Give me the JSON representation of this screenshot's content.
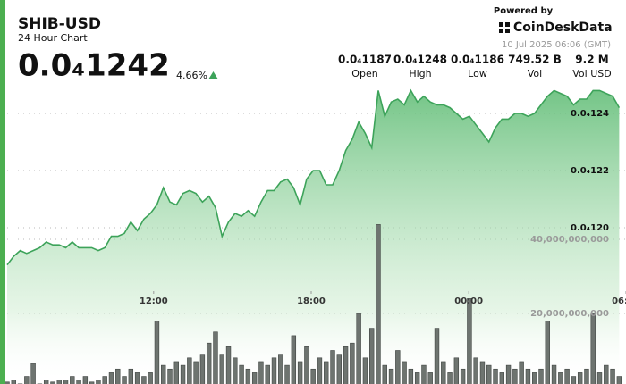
{
  "header": {
    "title": "SHIB-USD",
    "subtitle": "24 Hour Chart",
    "price": "0.0₄1242",
    "change": "4.66%",
    "powered_by": "Powered by",
    "brand": "CoinDeskData",
    "timestamp": "10 Jul 2025 06:06 (GMT)",
    "stats": [
      {
        "value": "0.0₄1187",
        "label": "Open"
      },
      {
        "value": "0.0₄1248",
        "label": "High"
      },
      {
        "value": "0.0₄1186",
        "label": "Low"
      },
      {
        "value": "749.52 B",
        "label": "Vol"
      },
      {
        "value": "9.2 M",
        "label": "Vol USD"
      }
    ]
  },
  "chart_data": {
    "type": "line",
    "xlim": [
      0,
      95.05
    ],
    "xticks": [
      {
        "value": 22.5,
        "label": "12:00"
      },
      {
        "value": 46.7,
        "label": "18:00"
      },
      {
        "value": 70.9,
        "label": "00:00"
      },
      {
        "value": 95.05,
        "label": "06:00"
      }
    ],
    "ylim": [
      1.1453e-05,
      1.2547e-05
    ],
    "yticks": [
      {
        "value": 1.24e-05,
        "label": "0.0₄124"
      },
      {
        "value": 1.22e-05,
        "label": "0.0₄122"
      },
      {
        "value": 1.2e-05,
        "label": "0.0₄120"
      }
    ],
    "y2lim": [
      0,
      50000000000
    ],
    "y2ticks": [
      {
        "value": 40000000000,
        "label": "40,000,000,000"
      },
      {
        "value": 20000000000,
        "label": "20,000,000,000"
      }
    ],
    "grid": true,
    "series": [
      {
        "type": "line",
        "color": "#3da35a",
        "values": [
          1.187e-05,
          1.19e-05,
          1.192e-05,
          1.191e-05,
          1.192e-05,
          1.193e-05,
          1.195e-05,
          1.194e-05,
          1.194e-05,
          1.193e-05,
          1.195e-05,
          1.193e-05,
          1.193e-05,
          1.193e-05,
          1.192e-05,
          1.193e-05,
          1.197e-05,
          1.197e-05,
          1.198e-05,
          1.202e-05,
          1.199e-05,
          1.203e-05,
          1.205e-05,
          1.208e-05,
          1.214e-05,
          1.209e-05,
          1.208e-05,
          1.212e-05,
          1.213e-05,
          1.212e-05,
          1.209e-05,
          1.211e-05,
          1.207e-05,
          1.197e-05,
          1.202e-05,
          1.205e-05,
          1.204e-05,
          1.206e-05,
          1.204e-05,
          1.209e-05,
          1.213e-05,
          1.213e-05,
          1.216e-05,
          1.217e-05,
          1.214e-05,
          1.208e-05,
          1.217e-05,
          1.22e-05,
          1.22e-05,
          1.215e-05,
          1.215e-05,
          1.22e-05,
          1.227e-05,
          1.231e-05,
          1.237e-05,
          1.233e-05,
          1.228e-05,
          1.248e-05,
          1.239e-05,
          1.244e-05,
          1.245e-05,
          1.243e-05,
          1.248e-05,
          1.244e-05,
          1.246e-05,
          1.244e-05,
          1.243e-05,
          1.243e-05,
          1.242e-05,
          1.24e-05,
          1.238e-05,
          1.239e-05,
          1.236e-05,
          1.233e-05,
          1.23e-05,
          1.235e-05,
          1.238e-05,
          1.238e-05,
          1.24e-05,
          1.24e-05,
          1.239e-05,
          1.24e-05,
          1.243e-05,
          1.246e-05,
          1.248e-05,
          1.247e-05,
          1.246e-05,
          1.243e-05,
          1.245e-05,
          1.245e-05,
          1.248e-05,
          1.248e-05,
          1.247e-05,
          1.246e-05,
          1.242e-05
        ]
      },
      {
        "type": "bar",
        "axis": "y2",
        "color": "#6e7470",
        "values": [
          1500000000.0,
          2000000000.0,
          1000000000.0,
          3000000000.0,
          6500000000.0,
          1000000000.0,
          2000000000.0,
          1500000000.0,
          2000000000.0,
          2000000000.0,
          3000000000.0,
          2000000000.0,
          3000000000.0,
          1500000000.0,
          2000000000.0,
          3000000000.0,
          4000000000.0,
          5000000000.0,
          3000000000.0,
          5000000000.0,
          4000000000.0,
          3000000000.0,
          4000000000.0,
          18000000000.0,
          6000000000.0,
          5000000000.0,
          7000000000.0,
          6000000000.0,
          8000000000.0,
          7000000000.0,
          9000000000.0,
          12000000000.0,
          15000000000.0,
          9000000000.0,
          11000000000.0,
          8000000000.0,
          6000000000.0,
          5000000000.0,
          4000000000.0,
          7000000000.0,
          6000000000.0,
          8000000000.0,
          9000000000.0,
          6000000000.0,
          14000000000.0,
          7000000000.0,
          11000000000.0,
          5000000000.0,
          8000000000.0,
          7000000000.0,
          10000000000.0,
          9000000000.0,
          11000000000.0,
          12000000000.0,
          20000000000.0,
          8000000000.0,
          16000000000.0,
          44000000000.0,
          6000000000.0,
          5000000000.0,
          10000000000.0,
          7000000000.0,
          5000000000.0,
          4000000000.0,
          6000000000.0,
          4000000000.0,
          16000000000.0,
          7000000000.0,
          4000000000.0,
          8000000000.0,
          5000000000.0,
          24000000000.0,
          8000000000.0,
          7000000000.0,
          6000000000.0,
          5000000000.0,
          4000000000.0,
          6000000000.0,
          5000000000.0,
          7000000000.0,
          5000000000.0,
          4000000000.0,
          5000000000.0,
          18000000000.0,
          6000000000.0,
          4000000000.0,
          5000000000.0,
          3000000000.0,
          4000000000.0,
          5000000000.0,
          20000000000.0,
          4000000000.0,
          6000000000.0,
          5000000000.0,
          3000000000.0
        ]
      }
    ]
  }
}
